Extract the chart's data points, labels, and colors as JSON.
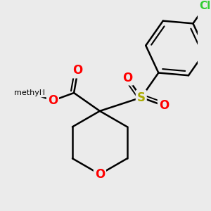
{
  "background_color": "#ebebeb",
  "bond_color": "#000000",
  "bond_width": 1.8,
  "atom_colors": {
    "O": "#ff0000",
    "S": "#aaaa00",
    "Cl": "#33cc33",
    "C": "#000000"
  },
  "font_size": 11,
  "figsize": [
    3.0,
    3.0
  ],
  "dpi": 100,
  "scale": 1.0
}
